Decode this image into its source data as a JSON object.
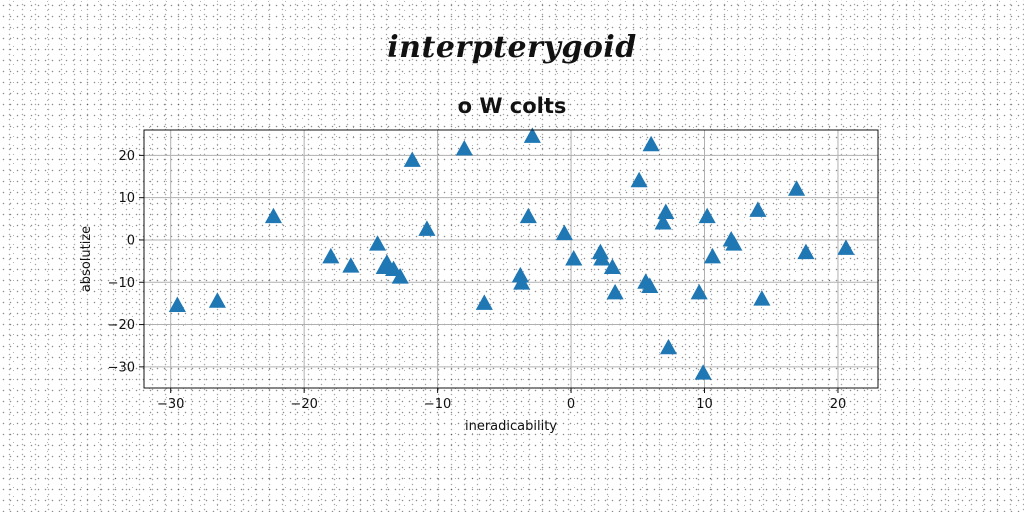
{
  "chart_data": {
    "type": "scatter",
    "suptitle": "interpterygoid",
    "title": "o W colts",
    "xlabel": "ineradicability",
    "ylabel": "absolutize",
    "xlim": [
      -32,
      23
    ],
    "ylim": [
      -35,
      26
    ],
    "xticks": [
      -30,
      -20,
      -10,
      0,
      10,
      20
    ],
    "yticks": [
      -30,
      -20,
      -10,
      0,
      10,
      20
    ],
    "xtick_labels": [
      "−30",
      "−20",
      "−10",
      "0",
      "10",
      "20"
    ],
    "ytick_labels": [
      "−30",
      "−20",
      "−10",
      "0",
      "10",
      "20"
    ],
    "grid": true,
    "marker": "triangle-up",
    "marker_color": "#1f77b4",
    "x": [
      -29.5,
      -26.5,
      -22.3,
      -18.0,
      -16.5,
      -14.5,
      -14.0,
      -13.8,
      -13.3,
      -12.8,
      -11.9,
      -10.8,
      -8.0,
      -6.5,
      -3.8,
      -3.7,
      -3.2,
      -2.9,
      -0.5,
      0.2,
      2.2,
      2.3,
      3.1,
      3.3,
      5.1,
      5.6,
      5.9,
      6.0,
      6.9,
      7.1,
      7.3,
      9.6,
      9.9,
      10.2,
      10.6,
      12.0,
      12.2,
      14.0,
      14.3,
      16.9,
      17.6,
      20.6
    ],
    "y": [
      -15.5,
      -14.5,
      5.5,
      -4.0,
      -6.2,
      -1.0,
      -6.5,
      -5.5,
      -7.0,
      -8.8,
      18.8,
      2.5,
      21.5,
      -15.0,
      -8.5,
      -10.2,
      5.5,
      24.5,
      1.5,
      -4.5,
      -3.0,
      -4.5,
      -6.5,
      -12.5,
      14.0,
      -10.0,
      -11.0,
      22.5,
      4.0,
      6.5,
      -25.5,
      -12.5,
      -31.5,
      5.5,
      -4.0,
      0.0,
      -1.0,
      7.0,
      -14.0,
      12.0,
      -3.0,
      -2.0
    ]
  }
}
